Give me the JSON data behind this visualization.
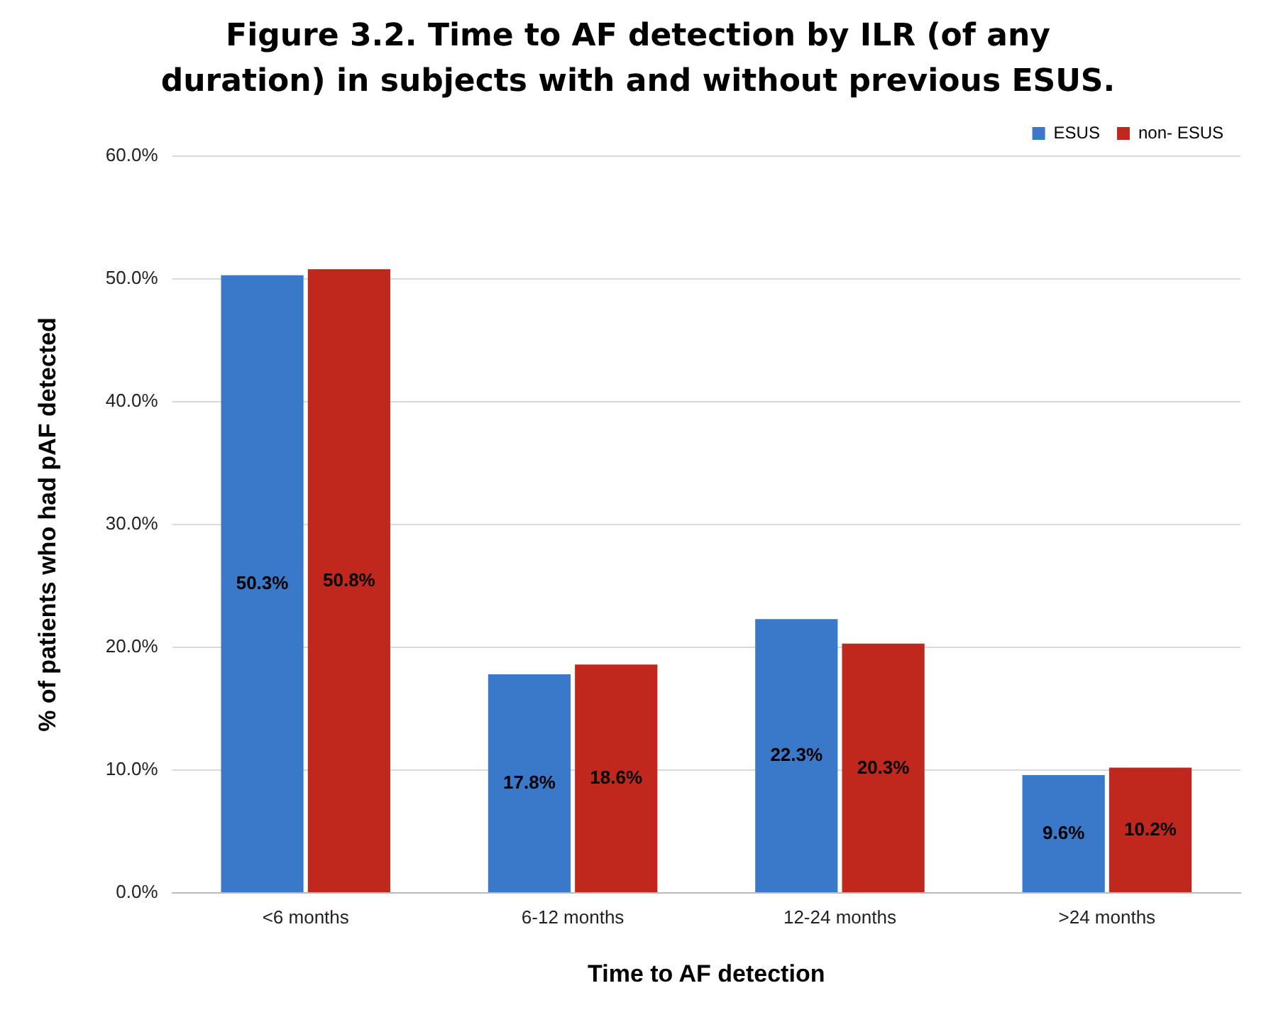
{
  "chart_data": {
    "type": "bar",
    "title": "Figure 3.2. Time to AF detection by ILR (of any duration) in subjects with and without previous ESUS.",
    "xlabel": "Time to AF detection",
    "ylabel": "% of patients who had pAF detected",
    "categories": [
      "<6 months",
      "6-12 months",
      "12-24 months",
      ">24 months"
    ],
    "series": [
      {
        "name": "ESUS",
        "color": "#3a78c9",
        "values": [
          50.3,
          17.8,
          22.3,
          9.6
        ],
        "value_labels": [
          "50.3%",
          "17.8%",
          "22.3%",
          "9.6%"
        ]
      },
      {
        "name": "non- ESUS",
        "color": "#c0281e",
        "values": [
          50.8,
          18.6,
          20.3,
          10.2
        ],
        "value_labels": [
          "50.8%",
          "18.6%",
          "20.3%",
          "10.2%"
        ]
      }
    ],
    "ylim": [
      0,
      60
    ],
    "yticks": [
      {
        "value": 0,
        "label": "0.0%"
      },
      {
        "value": 10,
        "label": "10.0%"
      },
      {
        "value": 20,
        "label": "20.0%"
      },
      {
        "value": 30,
        "label": "30.0%"
      },
      {
        "value": 40,
        "label": "40.0%"
      },
      {
        "value": 50,
        "label": "50.0%"
      },
      {
        "value": 60,
        "label": "60.0%"
      }
    ],
    "grid": "y",
    "legend": "top right"
  }
}
